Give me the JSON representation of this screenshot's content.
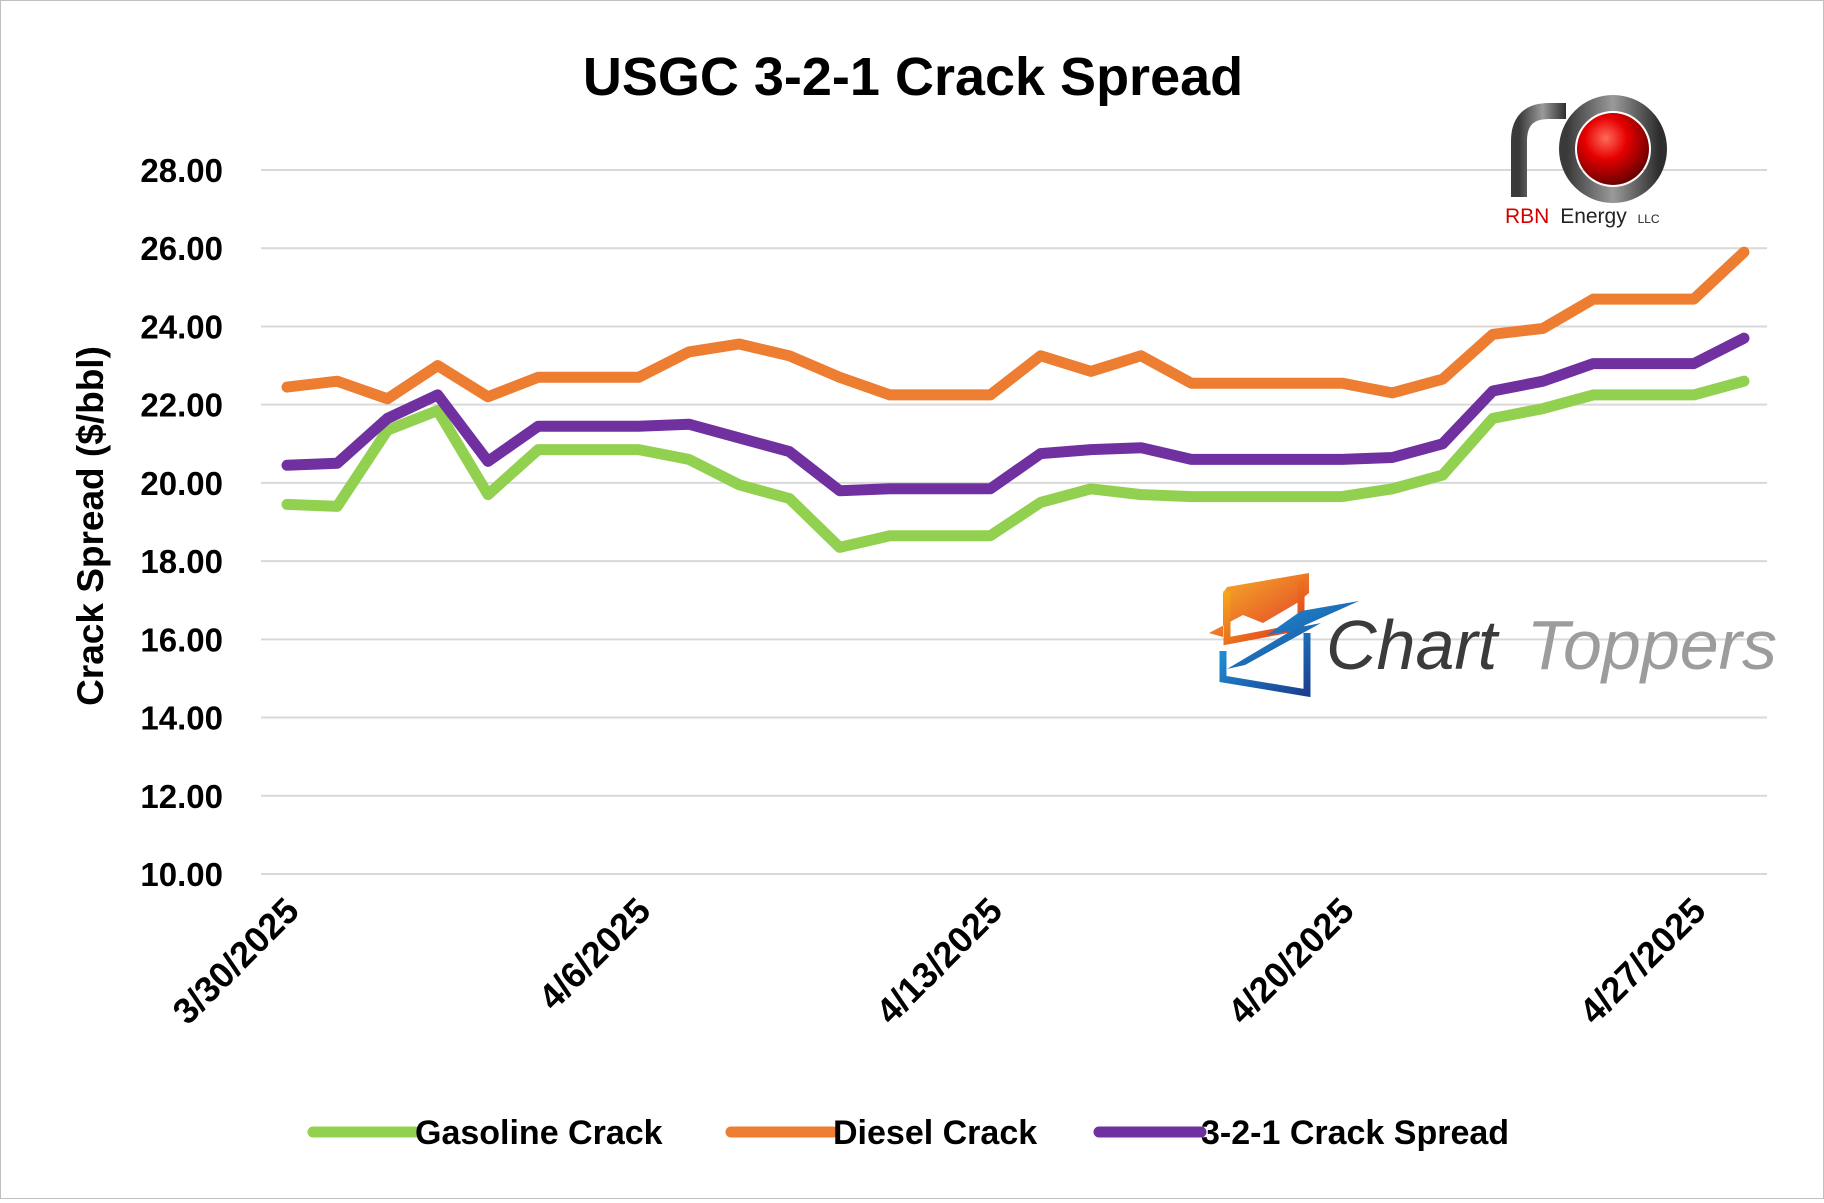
{
  "chart_data": {
    "type": "line",
    "title": "USGC 3-2-1 Crack Spread",
    "ylabel": "Crack Spread ($/bbl)",
    "xlabel": "",
    "ylim": [
      10,
      28
    ],
    "yticks": [
      "10.00",
      "12.00",
      "14.00",
      "16.00",
      "18.00",
      "20.00",
      "22.00",
      "24.00",
      "26.00",
      "28.00"
    ],
    "xtick_labels": [
      "3/30/2025",
      "4/6/2025",
      "4/13/2025",
      "4/20/2025",
      "4/27/2025"
    ],
    "x": [
      "3/30/2025",
      "3/31/2025",
      "4/1/2025",
      "4/2/2025",
      "4/3/2025",
      "4/4/2025",
      "4/5/2025",
      "4/6/2025",
      "4/7/2025",
      "4/8/2025",
      "4/9/2025",
      "4/10/2025",
      "4/11/2025",
      "4/12/2025",
      "4/13/2025",
      "4/14/2025",
      "4/15/2025",
      "4/16/2025",
      "4/17/2025",
      "4/18/2025",
      "4/19/2025",
      "4/20/2025",
      "4/21/2025",
      "4/22/2025",
      "4/23/2025",
      "4/24/2025",
      "4/25/2025",
      "4/26/2025",
      "4/27/2025",
      "4/28/2025"
    ],
    "grid": true,
    "legend_position": "bottom",
    "series": [
      {
        "name": "Gasoline Crack",
        "color": "#92d050",
        "values": [
          19.45,
          19.4,
          21.35,
          21.85,
          19.7,
          20.85,
          20.85,
          20.85,
          20.6,
          19.95,
          19.6,
          18.35,
          18.65,
          18.65,
          18.65,
          19.5,
          19.85,
          19.7,
          19.65,
          19.65,
          19.65,
          19.65,
          19.85,
          20.2,
          21.65,
          21.9,
          22.25,
          22.25,
          22.25,
          22.6
        ]
      },
      {
        "name": "Diesel Crack",
        "color": "#ed7d31",
        "values": [
          22.45,
          22.6,
          22.15,
          23.0,
          22.2,
          22.7,
          22.7,
          22.7,
          23.35,
          23.55,
          23.25,
          22.7,
          22.25,
          22.25,
          22.25,
          23.25,
          22.85,
          23.25,
          22.55,
          22.55,
          22.55,
          22.55,
          22.3,
          22.65,
          23.8,
          23.95,
          24.7,
          24.7,
          24.7,
          25.9
        ]
      },
      {
        "name": "3-2-1 Crack Spread",
        "color": "#7030a0",
        "values": [
          20.45,
          20.5,
          21.65,
          22.25,
          20.55,
          21.45,
          21.45,
          21.45,
          21.5,
          21.15,
          20.8,
          19.8,
          19.85,
          19.85,
          19.85,
          20.75,
          20.85,
          20.9,
          20.6,
          20.6,
          20.6,
          20.6,
          20.65,
          21.0,
          22.35,
          22.6,
          23.05,
          23.05,
          23.05,
          23.7
        ]
      }
    ]
  },
  "branding": {
    "rbn_logo_text": "RBN Energy LLC",
    "rbn_name_red": "RBN",
    "rbn_name_black": "Energy",
    "rbn_suffix": "LLC",
    "charttoppers_text": "Chart Toppers",
    "charttoppers_word1": "Chart",
    "charttoppers_word2": "Toppers"
  }
}
